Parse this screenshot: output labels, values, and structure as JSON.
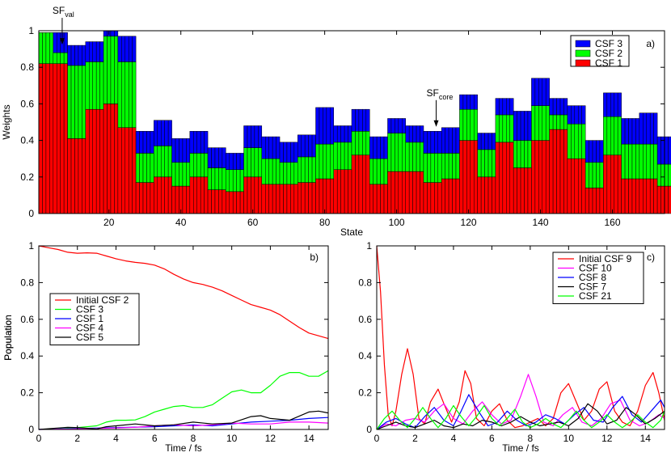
{
  "chart_data": [
    {
      "panel": "a",
      "panel_label": "a)",
      "type": "bar",
      "stacked": true,
      "xlabel": "State",
      "ylabel": "Weights",
      "xlim": [
        0.5,
        174.5
      ],
      "ylim": [
        0,
        1
      ],
      "xticks": [
        20,
        40,
        60,
        80,
        100,
        120,
        140,
        160
      ],
      "yticks": [
        0,
        0.2,
        0.4,
        0.6,
        0.8,
        1
      ],
      "x_start": 1,
      "bar_groups": [
        {
          "count": 4,
          "csf1": 0.82,
          "csf2": 0.99,
          "csf3": 0.99
        },
        {
          "count": 4,
          "csf1": 0.82,
          "csf2": 0.88,
          "csf3": 0.99
        },
        {
          "count": 5,
          "csf1": 0.41,
          "csf2": 0.81,
          "csf3": 0.92
        },
        {
          "count": 5,
          "csf1": 0.57,
          "csf2": 0.83,
          "csf3": 0.94
        },
        {
          "count": 4,
          "csf1": 0.6,
          "csf2": 0.97,
          "csf3": 1.0
        },
        {
          "count": 5,
          "csf1": 0.47,
          "csf2": 0.83,
          "csf3": 0.97
        },
        {
          "count": 5,
          "csf1": 0.17,
          "csf2": 0.33,
          "csf3": 0.45
        },
        {
          "count": 5,
          "csf1": 0.2,
          "csf2": 0.37,
          "csf3": 0.51
        },
        {
          "count": 5,
          "csf1": 0.15,
          "csf2": 0.28,
          "csf3": 0.41
        },
        {
          "count": 5,
          "csf1": 0.2,
          "csf2": 0.33,
          "csf3": 0.45
        },
        {
          "count": 5,
          "csf1": 0.13,
          "csf2": 0.25,
          "csf3": 0.36
        },
        {
          "count": 5,
          "csf1": 0.12,
          "csf2": 0.24,
          "csf3": 0.33
        },
        {
          "count": 5,
          "csf1": 0.2,
          "csf2": 0.36,
          "csf3": 0.48
        },
        {
          "count": 5,
          "csf1": 0.16,
          "csf2": 0.3,
          "csf3": 0.42
        },
        {
          "count": 5,
          "csf1": 0.16,
          "csf2": 0.28,
          "csf3": 0.39
        },
        {
          "count": 5,
          "csf1": 0.17,
          "csf2": 0.31,
          "csf3": 0.43
        },
        {
          "count": 5,
          "csf1": 0.19,
          "csf2": 0.38,
          "csf3": 0.58
        },
        {
          "count": 5,
          "csf1": 0.24,
          "csf2": 0.39,
          "csf3": 0.48
        },
        {
          "count": 5,
          "csf1": 0.32,
          "csf2": 0.45,
          "csf3": 0.57
        },
        {
          "count": 5,
          "csf1": 0.16,
          "csf2": 0.3,
          "csf3": 0.42
        },
        {
          "count": 5,
          "csf1": 0.23,
          "csf2": 0.44,
          "csf3": 0.52
        },
        {
          "count": 5,
          "csf1": 0.23,
          "csf2": 0.39,
          "csf3": 0.48
        },
        {
          "count": 5,
          "csf1": 0.17,
          "csf2": 0.33,
          "csf3": 0.45
        },
        {
          "count": 5,
          "csf1": 0.19,
          "csf2": 0.33,
          "csf3": 0.47
        },
        {
          "count": 5,
          "csf1": 0.4,
          "csf2": 0.57,
          "csf3": 0.65
        },
        {
          "count": 5,
          "csf1": 0.2,
          "csf2": 0.35,
          "csf3": 0.44
        },
        {
          "count": 5,
          "csf1": 0.39,
          "csf2": 0.54,
          "csf3": 0.63
        },
        {
          "count": 5,
          "csf1": 0.25,
          "csf2": 0.4,
          "csf3": 0.56
        },
        {
          "count": 5,
          "csf1": 0.4,
          "csf2": 0.59,
          "csf3": 0.74
        },
        {
          "count": 5,
          "csf1": 0.46,
          "csf2": 0.54,
          "csf3": 0.63
        },
        {
          "count": 5,
          "csf1": 0.3,
          "csf2": 0.49,
          "csf3": 0.59
        },
        {
          "count": 5,
          "csf1": 0.14,
          "csf2": 0.28,
          "csf3": 0.4
        },
        {
          "count": 5,
          "csf1": 0.32,
          "csf2": 0.53,
          "csf3": 0.66
        },
        {
          "count": 5,
          "csf1": 0.19,
          "csf2": 0.38,
          "csf3": 0.52
        },
        {
          "count": 5,
          "csf1": 0.19,
          "csf2": 0.38,
          "csf3": 0.55
        },
        {
          "count": 5,
          "csf1": 0.15,
          "csf2": 0.27,
          "csf3": 0.42
        }
      ],
      "legend": [
        {
          "name": "CSF 3",
          "color": "#0000ff"
        },
        {
          "name": "CSF 2",
          "color": "#00ff00"
        },
        {
          "name": "CSF 1",
          "color": "#ff0000"
        }
      ],
      "legend_position": "top-right",
      "annotations": [
        {
          "label_main": "SF",
          "label_sub": "val",
          "x": 7,
          "y": 0.92
        },
        {
          "label_main": "SF",
          "label_sub": "core",
          "x": 111,
          "y": 0.47
        }
      ]
    },
    {
      "panel": "b",
      "panel_label": "b)",
      "type": "line",
      "xlabel": "Time / fs",
      "ylabel": "Population",
      "xlim": [
        0,
        15
      ],
      "ylim": [
        0,
        1
      ],
      "xticks": [
        0,
        2,
        4,
        6,
        8,
        10,
        12,
        14
      ],
      "yticks": [
        0,
        0.2,
        0.4,
        0.6,
        0.8,
        1
      ],
      "legend_position": "center-left",
      "series": [
        {
          "name": "Initial CSF 2",
          "color": "#ff0000",
          "x": [
            0,
            0.5,
            1,
            1.5,
            2,
            2.5,
            3,
            3.5,
            4,
            4.5,
            5,
            5.5,
            6,
            6.5,
            7,
            7.5,
            8,
            8.5,
            9,
            9.5,
            10,
            10.5,
            11,
            11.5,
            12,
            12.5,
            13,
            13.5,
            14,
            14.5,
            15
          ],
          "y": [
            1.0,
            0.99,
            0.98,
            0.965,
            0.96,
            0.962,
            0.96,
            0.945,
            0.93,
            0.918,
            0.91,
            0.905,
            0.895,
            0.875,
            0.845,
            0.82,
            0.8,
            0.79,
            0.775,
            0.755,
            0.73,
            0.705,
            0.68,
            0.665,
            0.65,
            0.625,
            0.59,
            0.555,
            0.525,
            0.51,
            0.495
          ]
        },
        {
          "name": "CSF  3",
          "color": "#00ff00",
          "x": [
            0,
            1,
            2,
            3,
            3.5,
            4,
            4.5,
            5,
            5.5,
            6,
            6.5,
            7,
            7.5,
            8,
            8.5,
            9,
            9.5,
            10,
            10.5,
            11,
            11.5,
            12,
            12.5,
            13,
            13.5,
            14,
            14.5,
            15
          ],
          "y": [
            0,
            0.003,
            0.01,
            0.02,
            0.04,
            0.05,
            0.05,
            0.052,
            0.07,
            0.095,
            0.11,
            0.125,
            0.13,
            0.12,
            0.12,
            0.135,
            0.17,
            0.205,
            0.215,
            0.2,
            0.2,
            0.24,
            0.29,
            0.31,
            0.31,
            0.29,
            0.29,
            0.32
          ]
        },
        {
          "name": "CSF 1",
          "color": "#0000ff",
          "x": [
            0,
            2,
            4,
            6,
            7,
            8,
            9,
            10,
            11,
            12,
            13,
            14,
            15
          ],
          "y": [
            0,
            0.005,
            0.01,
            0.015,
            0.02,
            0.025,
            0.02,
            0.03,
            0.04,
            0.045,
            0.05,
            0.06,
            0.065
          ]
        },
        {
          "name": "CSF  4",
          "color": "#ff00ff",
          "x": [
            0,
            2,
            4,
            5,
            6,
            7,
            8,
            9,
            10,
            11,
            12,
            13,
            14,
            15
          ],
          "y": [
            0,
            0.003,
            0.008,
            0.012,
            0.02,
            0.025,
            0.02,
            0.025,
            0.035,
            0.03,
            0.03,
            0.04,
            0.04,
            0.035
          ]
        },
        {
          "name": "CSF 5",
          "color": "#000000",
          "x": [
            0,
            1,
            1.5,
            2,
            3,
            3.5,
            4,
            5,
            6,
            7,
            8,
            9,
            10,
            11,
            11.5,
            12,
            13,
            14,
            14.5,
            15
          ],
          "y": [
            0,
            0.008,
            0.012,
            0.01,
            0.003,
            0.015,
            0.02,
            0.03,
            0.02,
            0.025,
            0.04,
            0.03,
            0.035,
            0.07,
            0.075,
            0.06,
            0.05,
            0.095,
            0.1,
            0.09
          ]
        }
      ]
    },
    {
      "panel": "c",
      "panel_label": "c)",
      "type": "line",
      "xlabel": "Time / fs",
      "ylabel": "Population",
      "xlim": [
        0,
        15
      ],
      "ylim": [
        0,
        1
      ],
      "xticks": [
        0,
        2,
        4,
        6,
        8,
        10,
        12,
        14
      ],
      "yticks": [
        0,
        0.2,
        0.4,
        0.6,
        0.8,
        1
      ],
      "legend_position": "top-right",
      "series": [
        {
          "name": "Initial CSF 9",
          "color": "#ff0000",
          "x": [
            0,
            0.2,
            0.4,
            0.6,
            0.8,
            1.0,
            1.3,
            1.6,
            1.9,
            2.2,
            2.5,
            2.8,
            3.2,
            3.5,
            3.9,
            4.3,
            4.6,
            4.9,
            5.2,
            5.6,
            6.0,
            6.4,
            6.8,
            7.2,
            7.6,
            8.0,
            8.4,
            8.8,
            9.2,
            9.6,
            10.0,
            10.4,
            10.8,
            11.2,
            11.6,
            12.0,
            12.4,
            12.8,
            13.2,
            13.6,
            14.0,
            14.4,
            14.7,
            15.0
          ],
          "y": [
            1.0,
            0.75,
            0.35,
            0.08,
            0.02,
            0.1,
            0.3,
            0.44,
            0.3,
            0.06,
            0.03,
            0.15,
            0.22,
            0.14,
            0.04,
            0.15,
            0.32,
            0.25,
            0.06,
            0.02,
            0.1,
            0.14,
            0.05,
            0.01,
            0.02,
            0.04,
            0.06,
            0.02,
            0.06,
            0.2,
            0.25,
            0.15,
            0.05,
            0.1,
            0.22,
            0.26,
            0.1,
            0.04,
            0.02,
            0.1,
            0.24,
            0.31,
            0.2,
            0.05
          ]
        },
        {
          "name": "CSF 10",
          "color": "#ff00ff",
          "x": [
            0,
            0.5,
            1.0,
            1.5,
            2.0,
            2.5,
            3.0,
            3.5,
            4.0,
            4.5,
            5.0,
            5.5,
            6.0,
            6.5,
            7.0,
            7.5,
            7.9,
            8.3,
            8.7,
            9.2,
            9.7,
            10.2,
            10.7,
            11.2,
            11.7,
            12.2,
            12.7,
            13.2,
            13.7,
            14.2,
            14.7,
            15.0
          ],
          "y": [
            0,
            0.03,
            0.02,
            0.05,
            0.06,
            0.04,
            0.1,
            0.14,
            0.06,
            0.03,
            0.1,
            0.15,
            0.08,
            0.03,
            0.05,
            0.18,
            0.3,
            0.18,
            0.04,
            0.02,
            0.08,
            0.12,
            0.04,
            0.02,
            0.06,
            0.14,
            0.16,
            0.05,
            0.02,
            0.04,
            0.08,
            0.06
          ]
        },
        {
          "name": "CSF 8",
          "color": "#0000ff",
          "x": [
            0,
            0.5,
            1.0,
            1.5,
            2.0,
            2.5,
            3.0,
            3.5,
            4.0,
            4.4,
            4.8,
            5.3,
            5.8,
            6.3,
            6.8,
            7.3,
            7.8,
            8.3,
            8.8,
            9.3,
            9.8,
            10.3,
            10.8,
            11.3,
            11.8,
            12.3,
            12.8,
            13.3,
            13.8,
            14.3,
            14.8,
            15.0
          ],
          "y": [
            0,
            0.04,
            0.06,
            0.03,
            0.01,
            0.07,
            0.12,
            0.05,
            0.02,
            0.1,
            0.19,
            0.1,
            0.02,
            0.04,
            0.1,
            0.05,
            0.02,
            0.04,
            0.08,
            0.06,
            0.03,
            0.08,
            0.12,
            0.05,
            0.04,
            0.12,
            0.18,
            0.08,
            0.04,
            0.1,
            0.16,
            0.12
          ]
        },
        {
          "name": "CSF 7",
          "color": "#000000",
          "x": [
            0,
            0.5,
            1.0,
            1.5,
            2.0,
            2.5,
            3.0,
            3.5,
            4.0,
            4.5,
            5.0,
            5.5,
            6.0,
            6.5,
            7.0,
            7.5,
            8.0,
            8.5,
            9.0,
            9.5,
            10.0,
            10.5,
            11.0,
            11.5,
            12.0,
            12.5,
            13.0,
            13.5,
            14.0,
            14.5,
            15.0
          ],
          "y": [
            0,
            0.02,
            0.04,
            0.02,
            0.01,
            0.03,
            0.05,
            0.02,
            0.01,
            0.03,
            0.02,
            0.05,
            0.04,
            0.02,
            0.04,
            0.07,
            0.04,
            0.02,
            0.03,
            0.04,
            0.02,
            0.06,
            0.14,
            0.1,
            0.03,
            0.05,
            0.12,
            0.08,
            0.03,
            0.06,
            0.1
          ]
        },
        {
          "name": "CSF 21",
          "color": "#00ff00",
          "x": [
            0,
            0.4,
            0.8,
            1.2,
            1.6,
            2.0,
            2.4,
            2.8,
            3.2,
            3.6,
            4.0,
            4.4,
            4.8,
            5.2,
            5.6,
            6.0,
            6.4,
            6.8,
            7.2,
            7.6,
            8.0,
            8.4,
            8.8,
            9.2,
            9.6,
            10.0,
            10.4,
            10.8,
            11.2,
            11.6,
            12.0,
            12.4,
            12.8,
            13.2,
            13.6,
            14.0,
            14.4,
            14.8,
            15.0
          ],
          "y": [
            0,
            0.06,
            0.1,
            0.05,
            0.01,
            0.06,
            0.12,
            0.06,
            0.01,
            0.06,
            0.13,
            0.07,
            0.02,
            0.07,
            0.13,
            0.06,
            0.02,
            0.06,
            0.11,
            0.04,
            0.01,
            0.03,
            0.06,
            0.03,
            0.01,
            0.05,
            0.1,
            0.05,
            0.01,
            0.04,
            0.08,
            0.04,
            0.01,
            0.04,
            0.08,
            0.04,
            0.01,
            0.05,
            0.1
          ]
        }
      ]
    }
  ]
}
